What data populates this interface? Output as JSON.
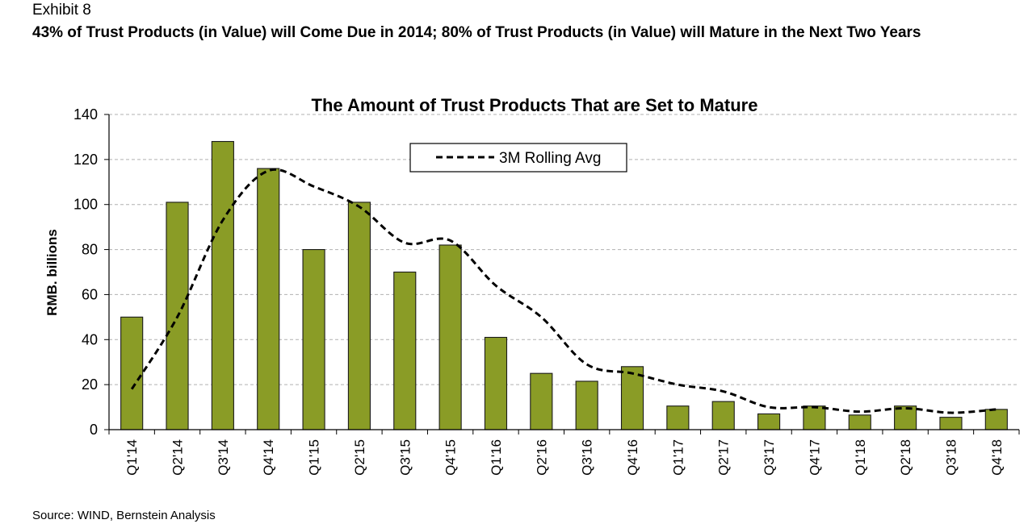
{
  "header": {
    "exhibit": "Exhibit 8",
    "headline": "43% of Trust Products (in Value) will Come Due in 2014; 80% of Trust Products (in Value) will Mature in the Next Two Years"
  },
  "footer": {
    "source": "Source: WIND, Bernstein Analysis"
  },
  "colors": {
    "bar": "#8a9c26",
    "bar_border": "#1a1a1a",
    "line": "#000000",
    "grid": "#b0b0b0"
  },
  "chart_data": {
    "type": "bar",
    "title": "The Amount of Trust Products That are Set to Mature",
    "xlabel": "",
    "ylabel": "RMB. billions",
    "ylim": [
      0,
      140
    ],
    "yticks": [
      0,
      20,
      40,
      60,
      80,
      100,
      120,
      140
    ],
    "grid": true,
    "legend_position": "top-center",
    "categories": [
      "Q1'14",
      "Q2'14",
      "Q3'14",
      "Q4'14",
      "Q1'15",
      "Q2'15",
      "Q3'15",
      "Q4'15",
      "Q1'16",
      "Q2'16",
      "Q3'16",
      "Q4'16",
      "Q1'17",
      "Q2'17",
      "Q3'17",
      "Q4'17",
      "Q1'18",
      "Q2'18",
      "Q3'18",
      "Q4'18"
    ],
    "values": [
      50,
      101,
      128,
      116,
      80,
      101,
      70,
      82,
      41,
      25,
      21.5,
      28,
      10.5,
      12.5,
      7,
      10.5,
      6.5,
      10.5,
      5.5,
      9
    ],
    "series": [
      {
        "name": "3M Rolling Avg",
        "type": "line",
        "style": "dashed",
        "values": [
          18,
          50,
          93,
          115,
          108,
          99,
          83,
          84,
          64,
          50,
          29,
          25,
          20,
          17,
          10,
          10,
          8,
          9.5,
          7.5,
          9
        ]
      }
    ]
  }
}
